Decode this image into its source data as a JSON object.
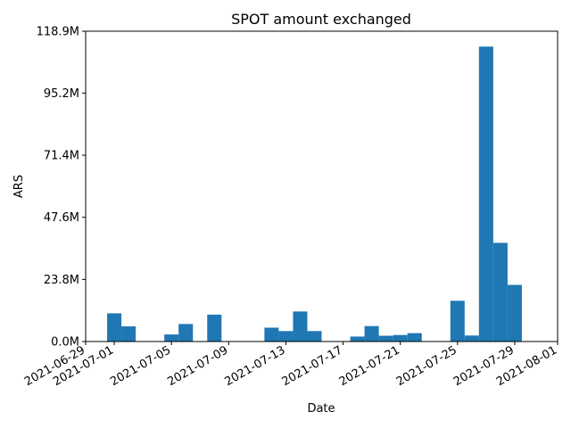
{
  "chart_data": {
    "type": "bar",
    "title": "SPOT amount exchanged",
    "xlabel": "Date",
    "ylabel": "ARS",
    "bar_color": "#1f77b4",
    "x_range": [
      "2021-06-29",
      "2021-08-01"
    ],
    "ylim": [
      0,
      118.9
    ],
    "y_unit": "M",
    "y_ticks": [
      0,
      23.8,
      47.6,
      71.4,
      95.2,
      118.9
    ],
    "y_tick_labels": [
      "0.0M",
      "23.8M",
      "47.6M",
      "71.4M",
      "95.2M",
      "118.9M"
    ],
    "x_tick_labels": [
      "2021-06-29",
      "2021-07-01",
      "2021-07-05",
      "2021-07-09",
      "2021-07-13",
      "2021-07-17",
      "2021-07-21",
      "2021-07-25",
      "2021-07-29",
      "2021-08-01"
    ],
    "dates": [
      "2021-07-01",
      "2021-07-02",
      "2021-07-03",
      "2021-07-04",
      "2021-07-05",
      "2021-07-06",
      "2021-07-07",
      "2021-07-08",
      "2021-07-09",
      "2021-07-10",
      "2021-07-11",
      "2021-07-12",
      "2021-07-13",
      "2021-07-14",
      "2021-07-15",
      "2021-07-16",
      "2021-07-17",
      "2021-07-18",
      "2021-07-19",
      "2021-07-20",
      "2021-07-21",
      "2021-07-22",
      "2021-07-23",
      "2021-07-24",
      "2021-07-25",
      "2021-07-26",
      "2021-07-27",
      "2021-07-28",
      "2021-07-29",
      "2021-07-30"
    ],
    "values": [
      10.8,
      5.8,
      0,
      0,
      2.7,
      6.7,
      0,
      10.3,
      0,
      0,
      0,
      5.3,
      4.0,
      11.5,
      4.0,
      0,
      0,
      1.9,
      5.9,
      2.2,
      2.5,
      3.2,
      0,
      0,
      15.6,
      2.3,
      113.0,
      37.8,
      21.7,
      0
    ]
  }
}
